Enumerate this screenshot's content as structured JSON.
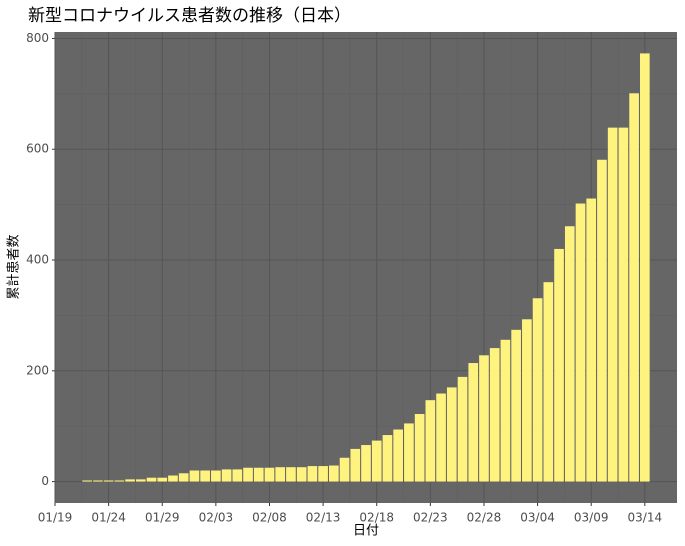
{
  "chart_data": {
    "type": "bar",
    "title": "新型コロナウイルス患者数の推移（日本）",
    "xlabel": "日付",
    "ylabel": "累計患者数",
    "x": [
      "01/22",
      "01/23",
      "01/24",
      "01/25",
      "01/26",
      "01/27",
      "01/28",
      "01/29",
      "01/30",
      "01/31",
      "02/01",
      "02/02",
      "02/03",
      "02/04",
      "02/05",
      "02/06",
      "02/07",
      "02/08",
      "02/09",
      "02/10",
      "02/11",
      "02/12",
      "02/13",
      "02/14",
      "02/15",
      "02/16",
      "02/17",
      "02/18",
      "02/19",
      "02/20",
      "02/21",
      "02/22",
      "02/23",
      "02/24",
      "02/25",
      "02/26",
      "02/27",
      "02/28",
      "02/29",
      "03/01",
      "03/02",
      "03/03",
      "03/04",
      "03/05",
      "03/06",
      "03/07",
      "03/08",
      "03/09",
      "03/10",
      "03/11",
      "03/12",
      "03/13",
      "03/14"
    ],
    "values": [
      2,
      2,
      2,
      2,
      4,
      4,
      7,
      7,
      11,
      15,
      20,
      20,
      20,
      22,
      22,
      25,
      25,
      25,
      26,
      26,
      26,
      28,
      28,
      29,
      43,
      59,
      66,
      74,
      84,
      94,
      105,
      122,
      147,
      159,
      170,
      189,
      214,
      228,
      241,
      256,
      274,
      293,
      331,
      360,
      420,
      461,
      502,
      511,
      581,
      639,
      639,
      701,
      773
    ],
    "color": "#fff380",
    "xlim": [
      "01/19",
      "03/17"
    ],
    "xticks": [
      "01/19",
      "01/24",
      "01/29",
      "02/03",
      "02/08",
      "02/13",
      "02/18",
      "02/23",
      "02/28",
      "03/04",
      "03/09",
      "03/14"
    ],
    "ylim": [
      -38.65,
      811.65
    ],
    "yticks": [
      0,
      200,
      400,
      600,
      800
    ],
    "grid": true
  }
}
